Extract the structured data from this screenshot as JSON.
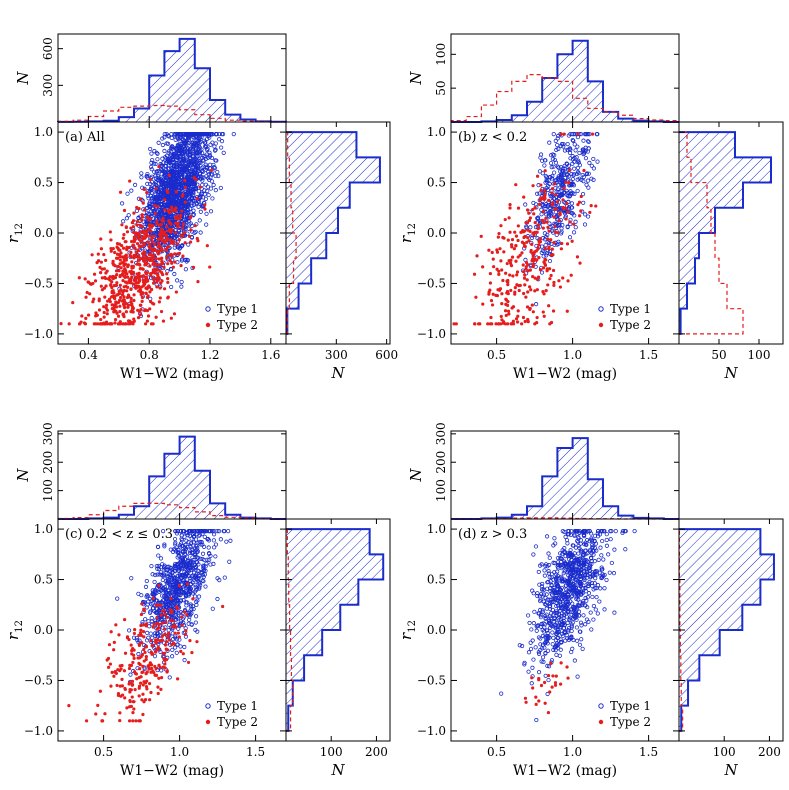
{
  "chart_data": [
    {
      "type": "scatter",
      "panel_label": "(a) All",
      "xlabel": "W1−W2 (mag)",
      "ylabel": "r",
      "ylabel_sub": "12",
      "xlim": [
        0.2,
        1.7
      ],
      "xticks": [
        0.4,
        0.8,
        1.2,
        1.6
      ],
      "xtick_labels": [
        "0.4",
        "0.8",
        "1.2",
        "1.6"
      ],
      "ylim": [
        -1.1,
        1.1
      ],
      "yticks": [
        -1.0,
        -0.5,
        0.0,
        0.5,
        1.0
      ],
      "ytick_labels": [
        "−1.0",
        "−0.5",
        "0.0",
        "0.5",
        "1.0"
      ],
      "top_hist": {
        "ylabel": "N",
        "ylim": [
          0,
          720
        ],
        "yticks": [
          300,
          600
        ],
        "ytick_labels": [
          "300",
          "600"
        ],
        "bins": [
          0.2,
          0.3,
          0.4,
          0.5,
          0.6,
          0.7,
          0.8,
          0.9,
          1.0,
          1.1,
          1.2,
          1.3,
          1.4,
          1.5,
          1.6,
          1.7
        ],
        "type1": [
          1,
          2,
          5,
          10,
          40,
          110,
          380,
          580,
          680,
          440,
          180,
          60,
          20,
          5,
          2
        ],
        "type2": [
          5,
          15,
          45,
          90,
          120,
          130,
          135,
          130,
          100,
          60,
          30,
          15,
          6,
          3,
          1
        ]
      },
      "right_hist": {
        "xlabel": "N",
        "xlim": [
          0,
          620
        ],
        "xticks": [
          300,
          600
        ],
        "xtick_labels": [
          "300",
          "600"
        ],
        "bins": [
          -1.0,
          -0.75,
          -0.5,
          -0.25,
          0.0,
          0.25,
          0.5,
          0.75,
          1.0
        ],
        "type1": [
          8,
          75,
          150,
          240,
          310,
          380,
          560,
          420
        ],
        "type2": [
          8,
          20,
          45,
          60,
          40,
          30,
          20,
          10
        ]
      },
      "scatter": {
        "type1_n": 1700,
        "type2_n": 700,
        "type1_mean": [
          0.98,
          0.42
        ],
        "type1_std": [
          0.12,
          0.36
        ],
        "type2_mean": [
          0.72,
          -0.35
        ],
        "type2_std": [
          0.16,
          0.34
        ],
        "type1_slope": 1.4,
        "type2_slope": 1.4
      },
      "legend": [
        "Type 1",
        "Type 2"
      ],
      "legend_loc": "lower right"
    },
    {
      "type": "scatter",
      "panel_label": "(b) z < 0.2",
      "xlabel": "W1−W2 (mag)",
      "ylabel": "r",
      "ylabel_sub": "12",
      "xlim": [
        0.2,
        1.7
      ],
      "xticks": [
        0.5,
        1.0,
        1.5
      ],
      "xtick_labels": [
        "0.5",
        "1.0",
        "1.5"
      ],
      "ylim": [
        -1.1,
        1.1
      ],
      "yticks": [
        -1.0,
        -0.5,
        0.0,
        0.5,
        1.0
      ],
      "ytick_labels": [
        "−1.0",
        "−0.5",
        "0.0",
        "0.5",
        "1.0"
      ],
      "top_hist": {
        "ylabel": "N",
        "ylim": [
          0,
          130
        ],
        "yticks": [
          50,
          100
        ],
        "ytick_labels": [
          "50",
          "100"
        ],
        "bins": [
          0.2,
          0.3,
          0.4,
          0.5,
          0.6,
          0.7,
          0.8,
          0.9,
          1.0,
          1.1,
          1.2,
          1.3,
          1.4,
          1.5,
          1.6,
          1.7
        ],
        "type1": [
          0,
          0,
          1,
          3,
          10,
          30,
          65,
          100,
          120,
          60,
          15,
          5,
          2,
          1,
          0
        ],
        "type2": [
          2,
          8,
          25,
          45,
          60,
          70,
          65,
          60,
          35,
          20,
          15,
          10,
          5,
          3,
          2
        ]
      },
      "right_hist": {
        "xlabel": "N",
        "xlim": [
          0,
          130
        ],
        "xticks": [
          50,
          100
        ],
        "xtick_labels": [
          "50",
          "100"
        ],
        "bins": [
          -1.0,
          -0.75,
          -0.5,
          -0.25,
          0.0,
          0.25,
          0.5,
          0.75,
          1.0
        ],
        "type1": [
          2,
          10,
          20,
          25,
          45,
          80,
          115,
          70
        ],
        "type2": [
          80,
          60,
          50,
          45,
          40,
          35,
          15,
          10
        ]
      },
      "scatter": {
        "type1_n": 420,
        "type2_n": 330,
        "type1_mean": [
          0.92,
          0.38
        ],
        "type1_std": [
          0.1,
          0.35
        ],
        "type2_mean": [
          0.72,
          -0.25
        ],
        "type2_std": [
          0.17,
          0.42
        ],
        "type1_slope": 1.4,
        "type2_slope": 1.4
      },
      "legend": [
        "Type 1",
        "Type 2"
      ],
      "legend_loc": "lower right"
    },
    {
      "type": "scatter",
      "panel_label": "(c) 0.2 < z ≤ 0.3",
      "xlabel": "W1−W2 (mag)",
      "ylabel": "r",
      "ylabel_sub": "12",
      "xlim": [
        0.2,
        1.7
      ],
      "xticks": [
        0.5,
        1.0,
        1.5
      ],
      "xtick_labels": [
        "0.5",
        "1.0",
        "1.5"
      ],
      "ylim": [
        -1.1,
        1.1
      ],
      "yticks": [
        -1.0,
        -0.5,
        0.0,
        0.5,
        1.0
      ],
      "ytick_labels": [
        "−1.0",
        "−0.5",
        "0.0",
        "0.5",
        "1.0"
      ],
      "top_hist": {
        "ylabel": "N",
        "ylim": [
          0,
          310
        ],
        "yticks": [
          100,
          200,
          300
        ],
        "ytick_labels": [
          "100",
          "200",
          "300"
        ],
        "bins": [
          0.2,
          0.3,
          0.4,
          0.5,
          0.6,
          0.7,
          0.8,
          0.9,
          1.0,
          1.1,
          1.2,
          1.3,
          1.4,
          1.5,
          1.6,
          1.7
        ],
        "type1": [
          0,
          0,
          2,
          5,
          15,
          45,
          150,
          230,
          290,
          170,
          55,
          15,
          5,
          2,
          0
        ],
        "type2": [
          2,
          5,
          15,
          30,
          45,
          55,
          55,
          50,
          40,
          25,
          12,
          6,
          3,
          1,
          0
        ]
      },
      "right_hist": {
        "xlabel": "N",
        "xlim": [
          0,
          230
        ],
        "xticks": [
          100,
          200
        ],
        "xtick_labels": [
          "100",
          "200"
        ],
        "bins": [
          -1.0,
          -0.75,
          -0.5,
          -0.25,
          0.0,
          0.25,
          0.5,
          0.75,
          1.0
        ],
        "type1": [
          5,
          15,
          40,
          80,
          120,
          160,
          215,
          185
        ],
        "type2": [
          10,
          15,
          12,
          10,
          8,
          6,
          5,
          3
        ]
      },
      "scatter": {
        "type1_n": 820,
        "type2_n": 260,
        "type1_mean": [
          0.98,
          0.42
        ],
        "type1_std": [
          0.12,
          0.34
        ],
        "type2_mean": [
          0.78,
          -0.3
        ],
        "type2_std": [
          0.15,
          0.32
        ],
        "type1_slope": 1.4,
        "type2_slope": 1.4
      },
      "legend": [
        "Type 1",
        "Type 2"
      ],
      "legend_loc": "lower right"
    },
    {
      "type": "scatter",
      "panel_label": "(d) z > 0.3",
      "xlabel": "W1−W2 (mag)",
      "ylabel": "r",
      "ylabel_sub": "12",
      "xlim": [
        0.2,
        1.7
      ],
      "xticks": [
        0.5,
        1.0,
        1.5
      ],
      "xtick_labels": [
        "0.5",
        "1.0",
        "1.5"
      ],
      "ylim": [
        -1.1,
        1.1
      ],
      "yticks": [
        -1.0,
        -0.5,
        0.0,
        0.5,
        1.0
      ],
      "ytick_labels": [
        "−1.0",
        "−0.5",
        "0.0",
        "0.5",
        "1.0"
      ],
      "top_hist": {
        "ylabel": "N",
        "ylim": [
          0,
          310
        ],
        "yticks": [
          100,
          200,
          300
        ],
        "ytick_labels": [
          "100",
          "200",
          "300"
        ],
        "bins": [
          0.2,
          0.3,
          0.4,
          0.5,
          0.6,
          0.7,
          0.8,
          0.9,
          1.0,
          1.1,
          1.2,
          1.3,
          1.4,
          1.5,
          1.6,
          1.7
        ],
        "type1": [
          0,
          0,
          2,
          5,
          15,
          45,
          150,
          250,
          285,
          140,
          45,
          12,
          4,
          2,
          0
        ],
        "type2": [
          0,
          0,
          1,
          2,
          3,
          4,
          4,
          3,
          2,
          1,
          1,
          0,
          0,
          0,
          0
        ]
      },
      "right_hist": {
        "xlabel": "N",
        "xlim": [
          0,
          230
        ],
        "xticks": [
          100,
          200
        ],
        "xtick_labels": [
          "100",
          "200"
        ],
        "bins": [
          -1.0,
          -0.75,
          -0.5,
          -0.25,
          0.0,
          0.25,
          0.5,
          0.75,
          1.0
        ],
        "type1": [
          5,
          20,
          45,
          90,
          140,
          180,
          210,
          180
        ],
        "type2": [
          8,
          5,
          4,
          3,
          2,
          2,
          1,
          1
        ]
      },
      "scatter": {
        "type1_n": 850,
        "type2_n": 25,
        "type1_mean": [
          0.98,
          0.4
        ],
        "type1_std": [
          0.12,
          0.36
        ],
        "type2_mean": [
          0.8,
          -0.55
        ],
        "type2_std": [
          0.1,
          0.15
        ],
        "type1_slope": 1.4,
        "type2_slope": 0.5
      },
      "legend": [
        "Type 1",
        "Type 2"
      ],
      "legend_loc": "lower right"
    }
  ],
  "colors": {
    "type1": "#1a2ccc",
    "type2": "#e51d1d"
  }
}
